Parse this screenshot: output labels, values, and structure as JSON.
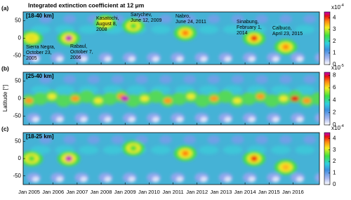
{
  "chart_data": [
    {
      "type": "heatmap",
      "title": "Integrated extinction coefficient at 12 μm",
      "panel_label": "(a)",
      "layer": "[18-40 km]",
      "ylim": [
        -75,
        75
      ],
      "yticks": [
        50,
        0,
        -50
      ],
      "xlim": [
        2004.75,
        2017.1
      ],
      "colorbar": {
        "lim": [
          0,
          4.5
        ],
        "ticks": [
          0,
          1,
          2,
          3,
          4
        ],
        "multiplier": "x10",
        "exponent": "-4"
      },
      "annotations": [
        {
          "lines": [
            "Sierra Negra,",
            "October 23,",
            "2005"
          ]
        },
        {
          "lines": [
            "Rabaul,",
            "October 7,",
            "2006"
          ]
        },
        {
          "lines": [
            "Kasatochi,",
            "August 8,",
            "2008"
          ]
        },
        {
          "lines": [
            "Sarychev,",
            "June 12, 2009"
          ]
        },
        {
          "lines": [
            "Nabro,",
            "June 24, 2011"
          ]
        },
        {
          "lines": [
            "Sinabung,",
            "February 1,",
            "2014"
          ]
        },
        {
          "lines": [
            "Calbuco,",
            "April 23, 2015"
          ]
        }
      ]
    },
    {
      "type": "heatmap",
      "panel_label": "(b)",
      "layer": "[25-40 km]",
      "ylabel": "Latitude [°]",
      "ylim": [
        -75,
        75
      ],
      "yticks": [
        50,
        0,
        -50
      ],
      "xlim": [
        2004.75,
        2017.1
      ],
      "colorbar": {
        "lim": [
          0,
          8.5
        ],
        "ticks": [
          0,
          2,
          4,
          6,
          8
        ],
        "multiplier": "x10",
        "exponent": "-5"
      }
    },
    {
      "type": "heatmap",
      "panel_label": "(c)",
      "layer": "[18-25 km]",
      "ylim": [
        -75,
        75
      ],
      "yticks": [
        50,
        0,
        -50
      ],
      "xlim": [
        2004.75,
        2017.1
      ],
      "colorbar": {
        "lim": [
          0,
          4.5
        ],
        "ticks": [
          0,
          1,
          2,
          3,
          4
        ],
        "multiplier": "x10",
        "exponent": "-4"
      },
      "xticks": [
        {
          "value": 2005,
          "label": "Jan 2005"
        },
        {
          "value": 2006,
          "label": "Jan 2006"
        },
        {
          "value": 2007,
          "label": "Jan 2007"
        },
        {
          "value": 2008,
          "label": "Jan 2008"
        },
        {
          "value": 2009,
          "label": "Jan 2009"
        },
        {
          "value": 2010,
          "label": "Jan 2010"
        },
        {
          "value": 2011,
          "label": "Jan 2011"
        },
        {
          "value": 2012,
          "label": "Jan 2012"
        },
        {
          "value": 2013,
          "label": "Jan 2013"
        },
        {
          "value": 2014,
          "label": "Jan 2014"
        },
        {
          "value": 2015,
          "label": "Jan 2015"
        },
        {
          "value": 2016,
          "label": "Jan 2016"
        }
      ]
    }
  ]
}
